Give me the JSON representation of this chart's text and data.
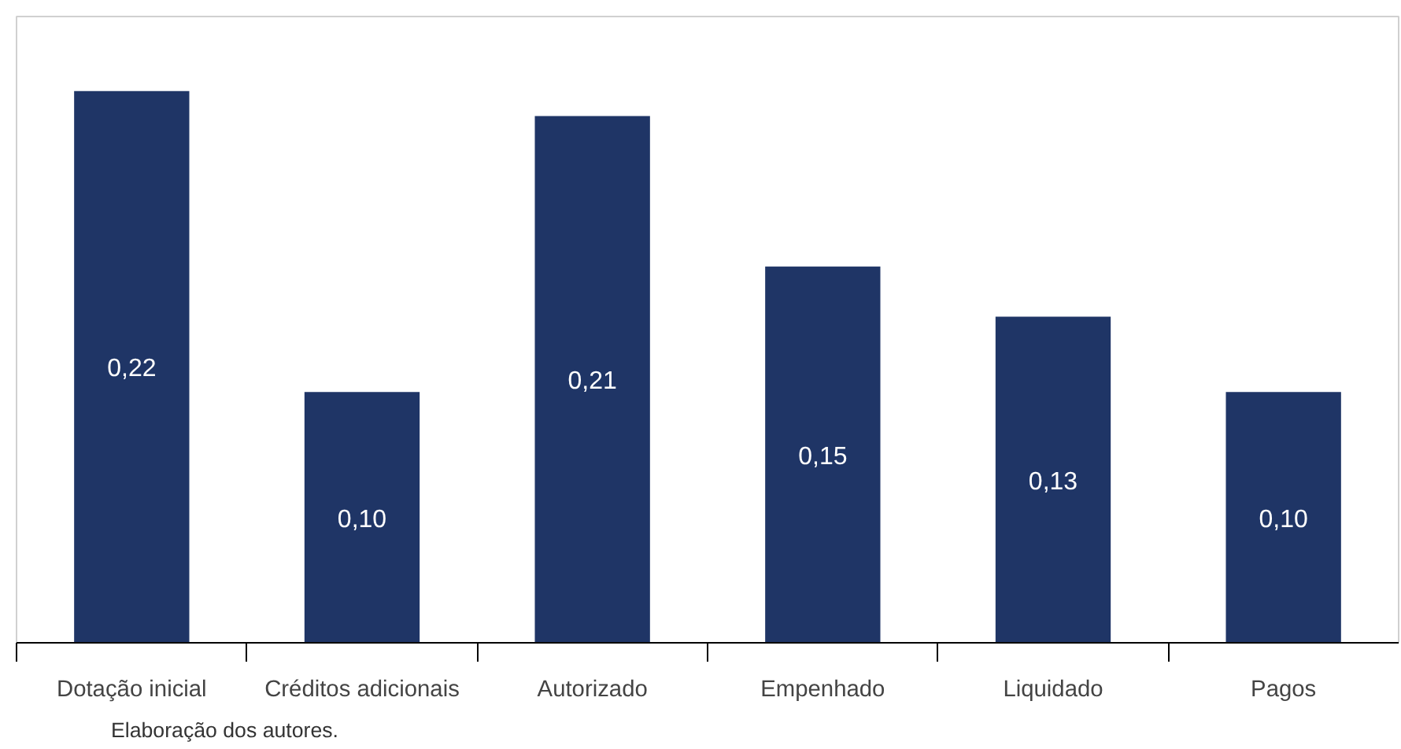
{
  "chart_data": {
    "type": "bar",
    "categories": [
      "Dotação inicial",
      "Créditos adicionais",
      "Autorizado",
      "Empenhado",
      "Liquidado",
      "Pagos"
    ],
    "values": [
      0.22,
      0.1,
      0.21,
      0.15,
      0.13,
      0.1
    ],
    "value_labels": [
      "0,22",
      "0,10",
      "0,21",
      "0,15",
      "0,13",
      "0,10"
    ],
    "color": "#1f3566",
    "grid": false,
    "annotations": [
      "Elaboração dos autores."
    ]
  }
}
